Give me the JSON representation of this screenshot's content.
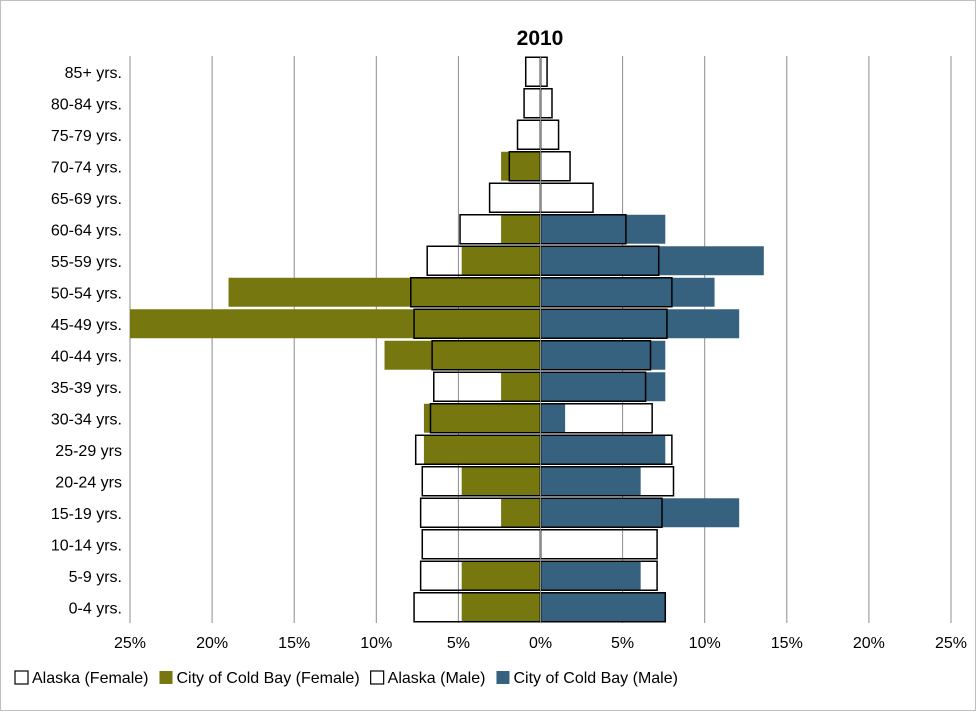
{
  "chart_data": {
    "type": "bar",
    "orientation": "horizontal",
    "title": "2010",
    "categories": [
      "0-4 yrs.",
      "5-9 yrs.",
      "10-14 yrs.",
      "15-19 yrs.",
      "20-24 yrs",
      "25-29 yrs",
      "30-34 yrs.",
      "35-39 yrs.",
      "40-44 yrs.",
      "45-49 yrs.",
      "50-54 yrs.",
      "55-59 yrs.",
      "60-64 yrs.",
      "65-69 yrs.",
      "70-74 yrs.",
      "75-79 yrs.",
      "80-84 yrs.",
      "85+ yrs."
    ],
    "x_tick_labels": [
      "25%",
      "20%",
      "15%",
      "10%",
      "5%",
      "0%",
      "5%",
      "10%",
      "15%",
      "20%",
      "25%"
    ],
    "xlim": [
      -25,
      25
    ],
    "grid": true,
    "legend_position": "bottom",
    "series": [
      {
        "name": "Alaska (Female)",
        "side": "left",
        "style": "outline",
        "color": "#ffffff",
        "values": [
          7.7,
          7.3,
          7.2,
          7.3,
          7.2,
          7.6,
          6.7,
          6.5,
          6.6,
          7.7,
          7.9,
          6.9,
          4.9,
          3.1,
          1.9,
          1.4,
          1.0,
          0.9
        ]
      },
      {
        "name": "City of Cold Bay (Female)",
        "side": "left",
        "style": "fill",
        "color": "#76780f",
        "values": [
          4.8,
          4.8,
          0,
          2.4,
          4.8,
          7.1,
          7.1,
          2.4,
          9.5,
          25.0,
          19.0,
          4.8,
          2.4,
          0,
          2.4,
          0,
          0,
          0
        ]
      },
      {
        "name": "Alaska (Male)",
        "side": "right",
        "style": "outline",
        "color": "#ffffff",
        "values": [
          7.6,
          7.1,
          7.1,
          7.4,
          8.1,
          8.0,
          6.8,
          6.4,
          6.7,
          7.7,
          8.0,
          7.2,
          5.2,
          3.2,
          1.8,
          1.1,
          0.7,
          0.4
        ]
      },
      {
        "name": "City of Cold Bay (Male)",
        "side": "right",
        "style": "fill",
        "color": "#36617f",
        "values": [
          7.6,
          6.1,
          0,
          12.1,
          6.1,
          7.6,
          1.5,
          7.6,
          7.6,
          12.1,
          10.6,
          13.6,
          7.6,
          0,
          0,
          0,
          0,
          0
        ]
      }
    ]
  }
}
